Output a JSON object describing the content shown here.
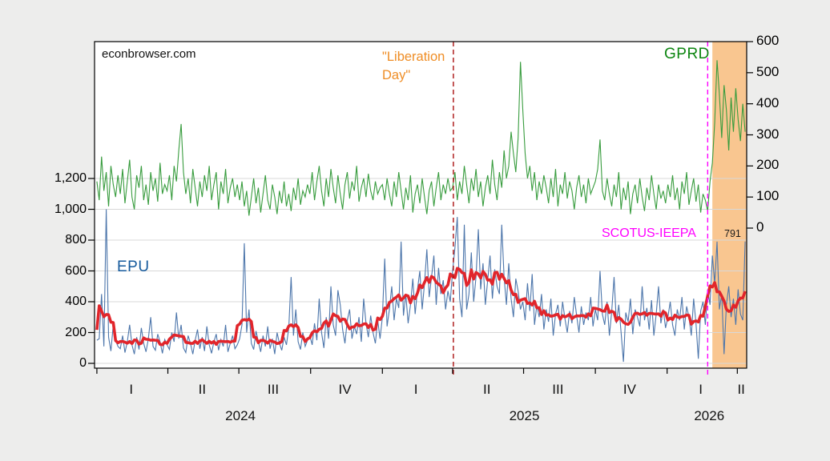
{
  "watermark": "econbrowser.com",
  "labels": {
    "epu": "EPU",
    "gprd": "GPRD",
    "scotus": "SCOTUS-IEEPA",
    "liberation_line1": "\"Liberation",
    "liberation_line2": "Day\"",
    "last_value": "791"
  },
  "colors": {
    "epu_line": "#4d76ab",
    "epu_ma_line": "#e1252b",
    "gprd_line": "#389c3e",
    "shade": "#f9c690",
    "liberation_line": "#aa1111",
    "scotus_line": "#ff00ff",
    "grid": "#d8d8d8",
    "plot_border": "#000000",
    "plot_bg": "#ffffff",
    "outer_bg": "#ededec"
  },
  "chart_data": {
    "type": "line",
    "title": "",
    "x_unit": "days, 3-day sampling of daily data starting 2024-01-01",
    "x_range_days": [
      -3,
      833
    ],
    "left_axis": {
      "values": [
        0,
        200,
        400,
        600,
        800,
        1000,
        1200
      ],
      "labels": [
        "0",
        "200",
        "400",
        "600",
        "800",
        "1,000",
        "1,200"
      ],
      "max_plotted": 2090
    },
    "right_axis": {
      "values": [
        0,
        100,
        200,
        300,
        400,
        500,
        600
      ],
      "labels": [
        "0",
        "100",
        "200",
        "300",
        "400",
        "500",
        "600"
      ],
      "min_plotted": -450
    },
    "x_axis": {
      "tick_days": [
        0,
        91,
        182,
        274,
        366,
        456,
        547,
        639,
        731,
        821
      ],
      "quarters": [
        {
          "label": "I",
          "day": 44
        },
        {
          "label": "II",
          "day": 135
        },
        {
          "label": "III",
          "day": 226
        },
        {
          "label": "IV",
          "day": 318
        },
        {
          "label": "I",
          "day": 409
        },
        {
          "label": "II",
          "day": 500
        },
        {
          "label": "III",
          "day": 591
        },
        {
          "label": "IV",
          "day": 683
        },
        {
          "label": "I",
          "day": 774
        },
        {
          "label": "II",
          "day": 826
        }
      ],
      "years": [
        {
          "label": "2024",
          "day": 184
        },
        {
          "label": "2025",
          "day": 548
        },
        {
          "label": "2026",
          "day": 785
        }
      ]
    },
    "grid": true,
    "events": [
      {
        "label": "\"Liberation Day\"",
        "day": 457,
        "color_key": "liberation_line"
      },
      {
        "label": "SCOTUS-IEEPA",
        "day": 783,
        "color_key": "scotus_line"
      }
    ],
    "shaded_region": {
      "start_day": 789,
      "end_day": 833,
      "color_key": "shade"
    },
    "last_epu_annotation": {
      "label": "791",
      "value": 791
    },
    "series": [
      {
        "name": "EPU",
        "axis": "left",
        "color_key": "epu_line",
        "step_days": 3,
        "values": [
          150,
          160,
          450,
          110,
          1000,
          170,
          80,
          250,
          150,
          110,
          95,
          180,
          70,
          140,
          250,
          120,
          60,
          170,
          90,
          230,
          130,
          75,
          160,
          300,
          110,
          85,
          190,
          140,
          65,
          155,
          120,
          90,
          200,
          140,
          330,
          160,
          250,
          100,
          70,
          180,
          130,
          60,
          150,
          220,
          95,
          170,
          80,
          240,
          120,
          65,
          140,
          190,
          85,
          155,
          110,
          250,
          75,
          130,
          180,
          95,
          120,
          160,
          250,
          780,
          200,
          350,
          130,
          90,
          210,
          140,
          75,
          180,
          110,
          240,
          95,
          160,
          60,
          200,
          130,
          85,
          170,
          120,
          230,
          560,
          180,
          350,
          140,
          90,
          200,
          110,
          150,
          180,
          120,
          260,
          150,
          420,
          200,
          100,
          300,
          160,
          500,
          250,
          180,
          475,
          380,
          220,
          130,
          280,
          350,
          160,
          240,
          190,
          300,
          140,
          420,
          260,
          170,
          310,
          200,
          130,
          280,
          160,
          300,
          680,
          240,
          350,
          500,
          280,
          420,
          360,
          790,
          310,
          450,
          260,
          380,
          550,
          320,
          480,
          600,
          350,
          520,
          740,
          430,
          560,
          700,
          380,
          620,
          450,
          540,
          350,
          470,
          400,
          600,
          750,
          950,
          420,
          300,
          900,
          350,
          450,
          720,
          400,
          560,
          870,
          480,
          650,
          380,
          540,
          700,
          420,
          610,
          500,
          450,
          900,
          560,
          380,
          650,
          420,
          300,
          550,
          470,
          350,
          400,
          280,
          520,
          340,
          580,
          250,
          380,
          300,
          450,
          220,
          350,
          270,
          420,
          180,
          320,
          380,
          240,
          400,
          290,
          200,
          340,
          260,
          430,
          310,
          200,
          370,
          250,
          330,
          280,
          430,
          240,
          350,
          280,
          600,
          320,
          250,
          400,
          180,
          340,
          560,
          260,
          380,
          200,
          10,
          330,
          270,
          420,
          190,
          350,
          300,
          240,
          500,
          280,
          360,
          220,
          410,
          180,
          320,
          500,
          260,
          350,
          230,
          300,
          400,
          250,
          180,
          350,
          280,
          430,
          220,
          370,
          300,
          180,
          420,
          260,
          30,
          340,
          400,
          250,
          480,
          380,
          700,
          520,
          790,
          350,
          450,
          60,
          380,
          500,
          300,
          420,
          250,
          480,
          320,
          280,
          791
        ]
      },
      {
        "name": "EPU centered moving average",
        "axis": "left",
        "color_key": "epu_ma_line",
        "derived": "7-point centered moving average of EPU"
      },
      {
        "name": "GPRD",
        "axis": "right",
        "color_key": "gprd_line",
        "step_days": 3,
        "values": [
          150,
          90,
          230,
          120,
          180,
          70,
          200,
          140,
          100,
          170,
          110,
          190,
          80,
          150,
          220,
          100,
          60,
          170,
          130,
          200,
          90,
          140,
          75,
          180,
          120,
          160,
          85,
          210,
          110,
          140,
          120,
          170,
          90,
          200,
          150,
          250,
          335,
          180,
          110,
          160,
          80,
          190,
          130,
          70,
          150,
          100,
          170,
          120,
          200,
          90,
          140,
          180,
          60,
          150,
          110,
          190,
          80,
          130,
          160,
          100,
          140,
          90,
          150,
          70,
          120,
          40,
          100,
          160,
          80,
          130,
          50,
          110,
          170,
          90,
          60,
          140,
          100,
          45,
          120,
          80,
          150,
          70,
          110,
          55,
          130,
          90,
          160,
          75,
          120,
          100,
          140,
          110,
          180,
          90,
          150,
          200,
          120,
          70,
          160,
          100,
          190,
          130,
          80,
          170,
          110,
          60,
          140,
          180,
          95,
          150,
          120,
          200,
          85,
          130,
          160,
          100,
          175,
          120,
          90,
          150,
          110,
          130,
          140,
          90,
          160,
          110,
          70,
          150,
          100,
          180,
          120,
          60,
          130,
          90,
          170,
          50,
          110,
          140,
          80,
          160,
          100,
          45,
          120,
          150,
          70,
          130,
          180,
          90,
          140,
          110,
          160,
          120,
          130,
          180,
          90,
          150,
          110,
          200,
          140,
          80,
          160,
          120,
          190,
          100,
          150,
          70,
          130,
          170,
          110,
          220,
          140,
          90,
          180,
          130,
          250,
          160,
          200,
          310,
          240,
          180,
          290,
          535,
          380,
          240,
          160,
          200,
          120,
          180,
          90,
          150,
          110,
          170,
          130,
          80,
          160,
          100,
          190,
          70,
          140,
          110,
          180,
          95,
          150,
          120,
          60,
          130,
          170,
          100,
          140,
          80,
          160,
          110,
          130,
          150,
          190,
          285,
          120,
          90,
          160,
          110,
          70,
          140,
          100,
          180,
          60,
          130,
          90,
          150,
          45,
          110,
          140,
          80,
          160,
          100,
          55,
          130,
          90,
          170,
          110,
          60,
          140,
          95,
          120,
          80,
          140,
          100,
          170,
          90,
          130,
          60,
          150,
          110,
          180,
          75,
          120,
          160,
          85,
          140,
          50,
          110,
          90,
          55,
          150,
          210,
          340,
          540,
          430,
          290,
          460,
          380,
          250,
          420,
          310,
          450,
          350,
          280,
          400,
          310
        ]
      }
    ]
  }
}
